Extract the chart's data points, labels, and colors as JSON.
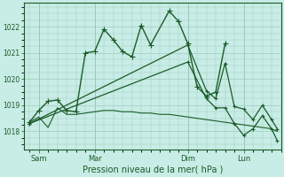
{
  "background_color": "#c8ece6",
  "plot_bg": "#c8ece6",
  "line_color": "#1a5c28",
  "grid_color": "#a0ccbf",
  "xlabel": "Pression niveau de la mer( hPa )",
  "ylim": [
    1017.3,
    1022.9
  ],
  "yticks": [
    1018,
    1019,
    1020,
    1021,
    1022
  ],
  "xlim": [
    -0.3,
    13.5
  ],
  "xtick_positions": [
    0.5,
    3.5,
    8.5,
    11.5
  ],
  "xtick_labels": [
    "Sam",
    "Mar",
    "Dim",
    "Lun"
  ],
  "series": [
    {
      "x": [
        0.0,
        0.5,
        1.0,
        1.5,
        2.0,
        2.5,
        3.0,
        3.5,
        4.0,
        4.5,
        5.0,
        5.5,
        6.0,
        6.5,
        7.5,
        8.0,
        8.5,
        9.0,
        9.5,
        10.0,
        10.5
      ],
      "y": [
        1018.35,
        1018.8,
        1019.15,
        1019.2,
        1018.8,
        1018.75,
        1021.0,
        1021.05,
        1021.9,
        1021.5,
        1021.05,
        1020.85,
        1022.05,
        1021.3,
        1022.6,
        1022.2,
        1021.35,
        1019.7,
        1019.35,
        1019.5,
        1021.35
      ],
      "linestyle": "-",
      "linewidth": 1.0,
      "marker": "+",
      "markersize": 4
    },
    {
      "x": [
        0.0,
        8.5,
        9.5,
        10.0,
        10.5,
        11.0,
        11.5,
        12.0,
        12.5,
        13.0,
        13.3
      ],
      "y": [
        1018.3,
        1021.3,
        1019.55,
        1019.25,
        1020.6,
        1018.95,
        1018.85,
        1018.45,
        1019.0,
        1018.45,
        1018.1
      ],
      "linestyle": "-",
      "linewidth": 0.9,
      "marker": "+",
      "markersize": 3
    },
    {
      "x": [
        0.0,
        8.5,
        9.5,
        10.0,
        10.5,
        11.0,
        11.5,
        12.0,
        12.5,
        13.0,
        13.3
      ],
      "y": [
        1018.3,
        1020.65,
        1019.25,
        1018.9,
        1018.9,
        1018.3,
        1017.85,
        1018.1,
        1018.6,
        1018.1,
        1017.65
      ],
      "linestyle": "-",
      "linewidth": 0.9,
      "marker": "+",
      "markersize": 3
    },
    {
      "x": [
        0.0,
        0.5,
        1.0,
        1.5,
        2.0,
        2.5,
        3.0,
        3.5,
        4.0,
        4.5,
        5.0,
        5.5,
        6.0,
        6.5,
        7.0,
        7.5,
        8.0,
        8.5,
        9.0,
        9.5,
        10.0,
        10.5,
        11.0,
        11.5,
        12.0,
        12.5,
        13.0,
        13.3
      ],
      "y": [
        1018.35,
        1018.55,
        1018.15,
        1018.9,
        1018.65,
        1018.65,
        1018.7,
        1018.75,
        1018.8,
        1018.8,
        1018.75,
        1018.75,
        1018.7,
        1018.7,
        1018.65,
        1018.65,
        1018.6,
        1018.55,
        1018.5,
        1018.45,
        1018.4,
        1018.35,
        1018.3,
        1018.25,
        1018.2,
        1018.15,
        1018.1,
        1018.0
      ],
      "linestyle": "-",
      "linewidth": 0.8,
      "marker": null,
      "markersize": 0
    }
  ]
}
